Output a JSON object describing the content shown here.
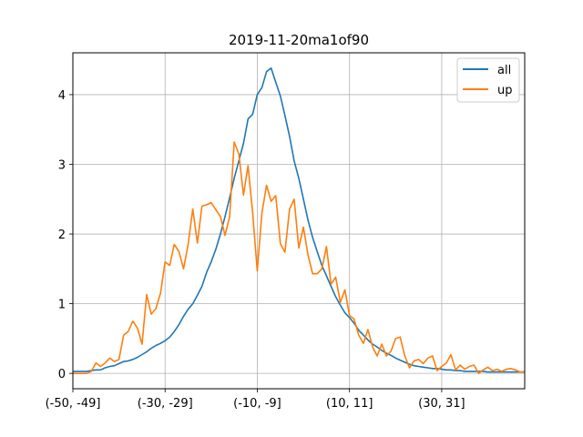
{
  "chart_data": {
    "type": "line",
    "title": "2019-11-20ma1of90",
    "xlabel": "",
    "ylabel": "",
    "x_tick_labels": [
      "(-50, -49]",
      "(-30, -29]",
      "(-10, -9]",
      "(10, 11]",
      "(30, 31]"
    ],
    "x_tick_positions": [
      -50,
      -30,
      -10,
      10,
      30
    ],
    "xlim": [
      -50,
      48
    ],
    "ylim": [
      -0.22,
      4.6
    ],
    "y_ticks": [
      0,
      1,
      2,
      3,
      4
    ],
    "grid": true,
    "legend_position": "top-right",
    "series": [
      {
        "name": "all",
        "color": "#1f77b4",
        "x": [
          -50,
          -49,
          -48,
          -47,
          -46,
          -45,
          -44,
          -43,
          -42,
          -41,
          -40,
          -39,
          -38,
          -37,
          -36,
          -35,
          -34,
          -33,
          -32,
          -31,
          -30,
          -29,
          -28,
          -27,
          -26,
          -25,
          -24,
          -23,
          -22,
          -21,
          -20,
          -19,
          -18,
          -17,
          -16,
          -15,
          -14,
          -13,
          -12,
          -11,
          -10,
          -9,
          -8,
          -7,
          -6,
          -5,
          -4,
          -3,
          -2,
          -1,
          0,
          1,
          2,
          3,
          4,
          5,
          6,
          7,
          8,
          9,
          10,
          11,
          12,
          13,
          14,
          15,
          16,
          17,
          18,
          19,
          20,
          21,
          22,
          23,
          24,
          25,
          26,
          27,
          28,
          29,
          30,
          31,
          32,
          33,
          34,
          35,
          36,
          37,
          38,
          39,
          40,
          41,
          42,
          43,
          44,
          45,
          46,
          47,
          48
        ],
        "values": [
          0.03,
          0.03,
          0.03,
          0.03,
          0.04,
          0.05,
          0.05,
          0.08,
          0.1,
          0.11,
          0.14,
          0.17,
          0.18,
          0.2,
          0.23,
          0.27,
          0.31,
          0.36,
          0.4,
          0.43,
          0.47,
          0.52,
          0.6,
          0.7,
          0.82,
          0.92,
          1.0,
          1.12,
          1.25,
          1.45,
          1.6,
          1.78,
          2.0,
          2.25,
          2.52,
          2.8,
          3.05,
          3.3,
          3.65,
          3.72,
          4.0,
          4.1,
          4.33,
          4.38,
          4.18,
          3.98,
          3.7,
          3.4,
          3.05,
          2.8,
          2.5,
          2.2,
          1.95,
          1.75,
          1.55,
          1.4,
          1.25,
          1.1,
          0.98,
          0.87,
          0.8,
          0.72,
          0.62,
          0.55,
          0.48,
          0.42,
          0.38,
          0.33,
          0.29,
          0.26,
          0.22,
          0.19,
          0.16,
          0.13,
          0.11,
          0.1,
          0.09,
          0.08,
          0.07,
          0.07,
          0.06,
          0.05,
          0.05,
          0.04,
          0.04,
          0.03,
          0.03,
          0.03,
          0.03,
          0.03,
          0.02,
          0.02,
          0.02,
          0.02,
          0.02,
          0.02,
          0.02,
          0.02,
          0.02
        ]
      },
      {
        "name": "up",
        "color": "#ff7f0e",
        "x": [
          -50,
          -49,
          -48,
          -47,
          -46,
          -45,
          -44,
          -43,
          -42,
          -41,
          -40,
          -39,
          -38,
          -37,
          -36,
          -35,
          -34,
          -33,
          -32,
          -31,
          -30,
          -29,
          -28,
          -27,
          -26,
          -25,
          -24,
          -23,
          -22,
          -21,
          -20,
          -19,
          -18,
          -17,
          -16,
          -15,
          -14,
          -13,
          -12,
          -11,
          -10,
          -9,
          -8,
          -7,
          -6,
          -5,
          -4,
          -3,
          -2,
          -1,
          0,
          1,
          2,
          3,
          4,
          5,
          6,
          7,
          8,
          9,
          10,
          11,
          12,
          13,
          14,
          15,
          16,
          17,
          18,
          19,
          20,
          21,
          22,
          23,
          24,
          25,
          26,
          27,
          28,
          29,
          30,
          31,
          32,
          33,
          34,
          35,
          36,
          37,
          38,
          39,
          40,
          41,
          42,
          43,
          44,
          45,
          46,
          47,
          48
        ],
        "values": [
          0.0,
          0.0,
          0.0,
          0.0,
          0.03,
          0.15,
          0.1,
          0.15,
          0.22,
          0.17,
          0.2,
          0.55,
          0.6,
          0.75,
          0.65,
          0.42,
          1.13,
          0.85,
          0.93,
          1.15,
          1.6,
          1.55,
          1.85,
          1.75,
          1.5,
          1.85,
          2.36,
          1.87,
          2.4,
          2.42,
          2.45,
          2.35,
          2.25,
          1.98,
          2.25,
          3.32,
          3.15,
          2.56,
          2.98,
          2.3,
          1.47,
          2.3,
          2.7,
          2.47,
          2.55,
          1.86,
          1.74,
          2.36,
          2.5,
          1.8,
          2.1,
          1.7,
          1.43,
          1.43,
          1.5,
          1.82,
          1.28,
          1.38,
          1.02,
          1.2,
          0.83,
          0.78,
          0.55,
          0.43,
          0.63,
          0.38,
          0.25,
          0.42,
          0.25,
          0.32,
          0.5,
          0.52,
          0.25,
          0.08,
          0.18,
          0.2,
          0.14,
          0.22,
          0.25,
          0.04,
          0.1,
          0.15,
          0.27,
          0.05,
          0.12,
          0.06,
          0.1,
          0.12,
          0.0,
          0.05,
          0.09,
          0.04,
          0.06,
          0.03,
          0.06,
          0.07,
          0.05,
          0.02,
          0.02
        ]
      }
    ]
  }
}
